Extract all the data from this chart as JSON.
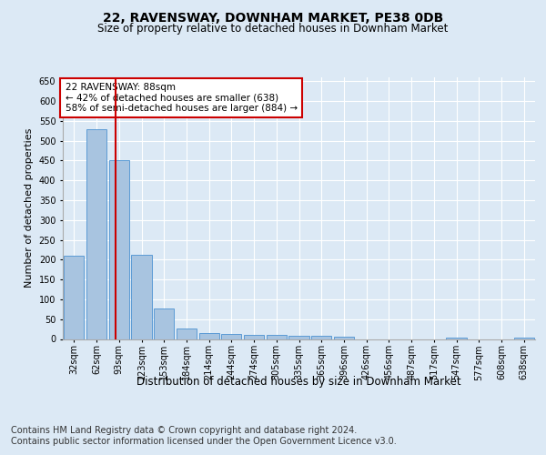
{
  "title": "22, RAVENSWAY, DOWNHAM MARKET, PE38 0DB",
  "subtitle": "Size of property relative to detached houses in Downham Market",
  "xlabel": "Distribution of detached houses by size in Downham Market",
  "ylabel": "Number of detached properties",
  "categories": [
    "32sqm",
    "62sqm",
    "93sqm",
    "123sqm",
    "153sqm",
    "184sqm",
    "214sqm",
    "244sqm",
    "274sqm",
    "305sqm",
    "335sqm",
    "365sqm",
    "396sqm",
    "426sqm",
    "456sqm",
    "487sqm",
    "517sqm",
    "547sqm",
    "577sqm",
    "608sqm",
    "638sqm"
  ],
  "values": [
    210,
    530,
    450,
    213,
    78,
    27,
    15,
    13,
    10,
    10,
    8,
    8,
    6,
    0,
    0,
    0,
    0,
    3,
    0,
    0,
    3
  ],
  "bar_color": "#a8c4e0",
  "bar_edge_color": "#5b9bd5",
  "red_line_x": 1.84,
  "red_line_color": "#cc0000",
  "annotation_text": "22 RAVENSWAY: 88sqm\n← 42% of detached houses are smaller (638)\n58% of semi-detached houses are larger (884) →",
  "annotation_box_color": "#ffffff",
  "annotation_box_edge": "#cc0000",
  "ylim": [
    0,
    660
  ],
  "yticks": [
    0,
    50,
    100,
    150,
    200,
    250,
    300,
    350,
    400,
    450,
    500,
    550,
    600,
    650
  ],
  "footer_line1": "Contains HM Land Registry data © Crown copyright and database right 2024.",
  "footer_line2": "Contains public sector information licensed under the Open Government Licence v3.0.",
  "bg_color": "#dce9f5",
  "plot_bg_color": "#dce9f5",
  "grid_color": "#ffffff",
  "title_fontsize": 10,
  "subtitle_fontsize": 8.5,
  "footer_fontsize": 7,
  "ylabel_fontsize": 8,
  "xlabel_fontsize": 8.5,
  "tick_fontsize": 7,
  "annot_fontsize": 7.5
}
